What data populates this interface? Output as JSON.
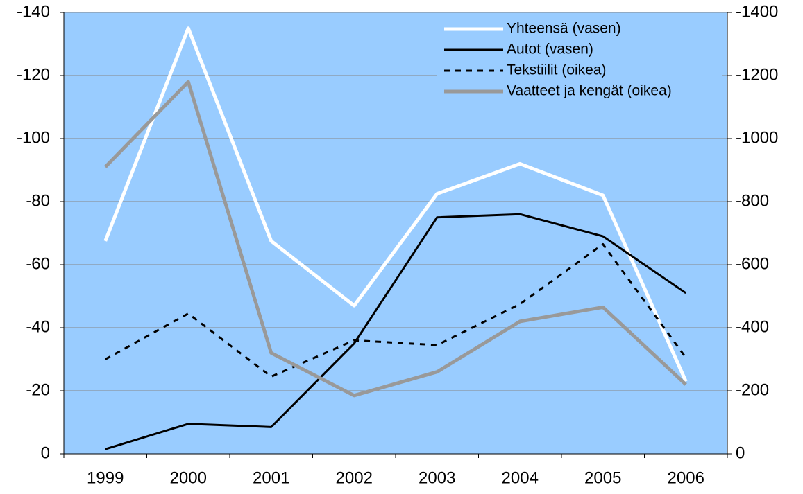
{
  "chart_data": {
    "type": "line",
    "categories": [
      "1999",
      "2000",
      "2001",
      "2002",
      "2003",
      "2004",
      "2005",
      "2006"
    ],
    "ylim": [
      0,
      -140
    ],
    "yticks": [
      0,
      -20,
      -40,
      -60,
      -80,
      -100,
      -120,
      -140
    ],
    "y2lim": [
      0,
      -1400
    ],
    "y2ticks": [
      0,
      -200,
      -400,
      -600,
      -800,
      -1000,
      -1200,
      -1400
    ],
    "grid": true,
    "legend": "upper right",
    "series": [
      {
        "name": "Yhteensä (vasen)",
        "color": "#ffffff",
        "style": "solid",
        "values": [
          -67.5,
          -135,
          -67.5,
          -47,
          -82.5,
          -92,
          -82,
          -23
        ]
      },
      {
        "name": "Autot (vasen)",
        "color": "#000000",
        "style": "solid",
        "values": [
          -1.5,
          -9.5,
          -8.5,
          -35,
          -75,
          -76,
          -69,
          -51
        ]
      },
      {
        "name": "Tekstiilit (oikea)",
        "color": "#000000",
        "style": "dashed",
        "axis": "y2",
        "values": [
          -300,
          -445,
          -245,
          -360,
          -345,
          -475,
          -665,
          -305
        ]
      },
      {
        "name": "Vaatteet ja kengät (oikea)",
        "color": "#999999",
        "style": "solid",
        "axis": "y2",
        "values": [
          -910,
          -1180,
          -320,
          -185,
          -260,
          -420,
          -465,
          -220
        ]
      }
    ]
  }
}
